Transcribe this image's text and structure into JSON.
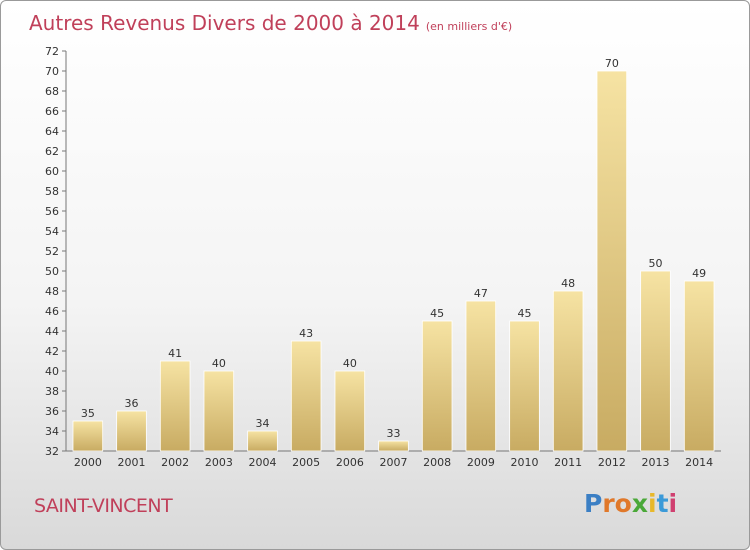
{
  "title": "Autres Revenus Divers de 2000 à 2014",
  "title_unit": "(en milliers d'€)",
  "place": "SAINT-VINCENT",
  "logo": {
    "letters": [
      {
        "ch": "P",
        "color": "#3b7fc4"
      },
      {
        "ch": "r",
        "color": "#e0782a"
      },
      {
        "ch": "o",
        "color": "#e0782a"
      },
      {
        "ch": "x",
        "color": "#4aa838"
      },
      {
        "ch": "i",
        "color": "#e8b82a"
      },
      {
        "ch": "t",
        "color": "#3b9ad8"
      },
      {
        "ch": "i",
        "color": "#d04070"
      }
    ]
  },
  "chart_data": {
    "type": "bar",
    "categories": [
      "2000",
      "2001",
      "2002",
      "2003",
      "2004",
      "2005",
      "2006",
      "2007",
      "2008",
      "2009",
      "2010",
      "2011",
      "2012",
      "2013",
      "2014"
    ],
    "values": [
      35,
      36,
      41,
      40,
      34,
      43,
      40,
      33,
      45,
      47,
      45,
      48,
      70,
      50,
      49
    ],
    "ylim": [
      32,
      72
    ],
    "ytick_step": 2,
    "grid": false,
    "bar_color_top": "#f6e3a3",
    "bar_color_bottom": "#c8ab62"
  }
}
